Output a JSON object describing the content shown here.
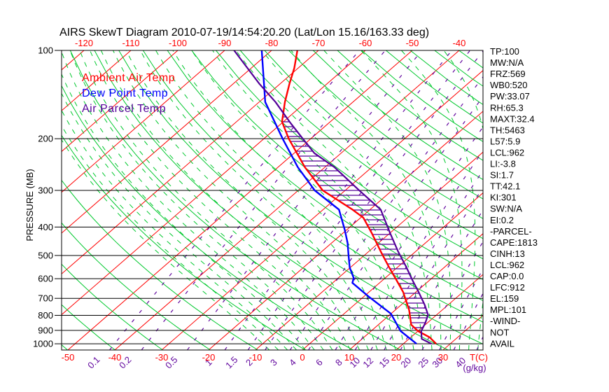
{
  "title": "AIRS SkewT Diagram 2010-07-19/14:54:20.20 (Lat/Lon 15.16/163.33 deg)",
  "colors": {
    "background": "#ffffff",
    "frame": "#000000",
    "isotherm": "#ff0000",
    "adiabat_green": "#00c82d",
    "mixing_purple": "#62079e",
    "ambient": "#ff0000",
    "dewpoint": "#0000ff",
    "parcel": "#530098"
  },
  "axes": {
    "pressure": {
      "label": "PRESSURE (MB)",
      "ticks": [
        100,
        200,
        300,
        400,
        500,
        600,
        700,
        800,
        900,
        1000
      ]
    },
    "temp_top": {
      "ticks": [
        -120,
        -110,
        -100,
        -90,
        -80,
        -70,
        -60,
        -50,
        -40
      ]
    },
    "temp_bottom": {
      "ticks": [
        -50,
        -40,
        -30,
        -20,
        -10,
        0,
        10,
        20,
        30
      ],
      "unit": "T(C)"
    },
    "mixing_ratio": {
      "values": [
        "0.1",
        "0.2",
        "0.5",
        "1",
        "1.5",
        "2",
        "3",
        "4",
        "6",
        "8",
        "10",
        "12",
        "15",
        "20",
        "25",
        "30",
        "40"
      ],
      "unit": "(g/kg)"
    }
  },
  "stats": [
    "TP:100",
    "MW:N/A",
    "FRZ:569",
    "WB0:520",
    "PW:33.07",
    "RH:65.3",
    "MAXT:32.4",
    "TH:5463",
    "L57:5.9",
    "LCL:962",
    "LI:-3.8",
    "SI:1.7",
    "TT:42.1",
    "KI:301",
    "SW:N/A",
    "EI:0.2",
    "-PARCEL-",
    "CAPE:1813",
    "CINH:13",
    "LCL:962",
    "CAP:0.0",
    "LFC:912",
    "EL:159",
    "MPL:101",
    "-WIND-",
    "NOT",
    "AVAIL"
  ],
  "chart_data": {
    "type": "line",
    "subtype": "skewt-log-p",
    "pressure_range_mb": [
      100,
      1050
    ],
    "isotherms": {
      "min": -120,
      "max": 30,
      "step": 10
    },
    "dry_adiabats_K": {
      "min": 220,
      "max": 460,
      "step": 10
    },
    "moist_adiabats_C": {
      "min": -10,
      "max": 36,
      "step": 2
    },
    "cape_hatch": {
      "from_mb": 912,
      "to_mb": 159
    },
    "series": [
      {
        "name": "Ambient Air Temp",
        "color": "#ff0000",
        "points": [
          [
            100,
            -74.5
          ],
          [
            115,
            -70.8
          ],
          [
            130,
            -68.0
          ],
          [
            150,
            -64.5
          ],
          [
            175,
            -60.3
          ],
          [
            200,
            -54.7
          ],
          [
            250,
            -44.3
          ],
          [
            300,
            -34.8
          ],
          [
            349,
            -23.7
          ],
          [
            372,
            -19.4
          ],
          [
            421,
            -13.7
          ],
          [
            485,
            -7.4
          ],
          [
            546,
            -2.0
          ],
          [
            605,
            2.8
          ],
          [
            668,
            7.4
          ],
          [
            768,
            13.0
          ],
          [
            861,
            17.0
          ],
          [
            905,
            20.0
          ],
          [
            950,
            24.0
          ],
          [
            1000,
            27.0
          ]
        ]
      },
      {
        "name": "Dew Point Temp",
        "color": "#0000ff",
        "points": [
          [
            100,
            -82.1
          ],
          [
            150,
            -68.7
          ],
          [
            200,
            -56.0
          ],
          [
            250,
            -45.8
          ],
          [
            300,
            -36.5
          ],
          [
            349,
            -26.6
          ],
          [
            407,
            -20.6
          ],
          [
            452,
            -16.7
          ],
          [
            505,
            -13.0
          ],
          [
            550,
            -10.1
          ],
          [
            597,
            -6.7
          ],
          [
            620,
            -5.8
          ],
          [
            690,
            1.0
          ],
          [
            790,
            10.0
          ],
          [
            905,
            16.3
          ],
          [
            1000,
            22.8
          ]
        ]
      },
      {
        "name": "Air Parcel Temp",
        "color": "#530098",
        "points": [
          [
            100,
            -88.0
          ],
          [
            130,
            -74.4
          ],
          [
            150,
            -66.5
          ],
          [
            176,
            -58.4
          ],
          [
            200,
            -51.7
          ],
          [
            224,
            -45.7
          ],
          [
            250,
            -38.0
          ],
          [
            300,
            -27.0
          ],
          [
            349,
            -17.7
          ],
          [
            419,
            -10.0
          ],
          [
            485,
            -3.7
          ],
          [
            546,
            1.7
          ],
          [
            605,
            6.2
          ],
          [
            668,
            10.7
          ],
          [
            735,
            14.9
          ],
          [
            797,
            18.2
          ],
          [
            850,
            19.6
          ],
          [
            905,
            20.7
          ],
          [
            962,
            22.7
          ],
          [
            1000,
            26.0
          ]
        ]
      }
    ]
  }
}
